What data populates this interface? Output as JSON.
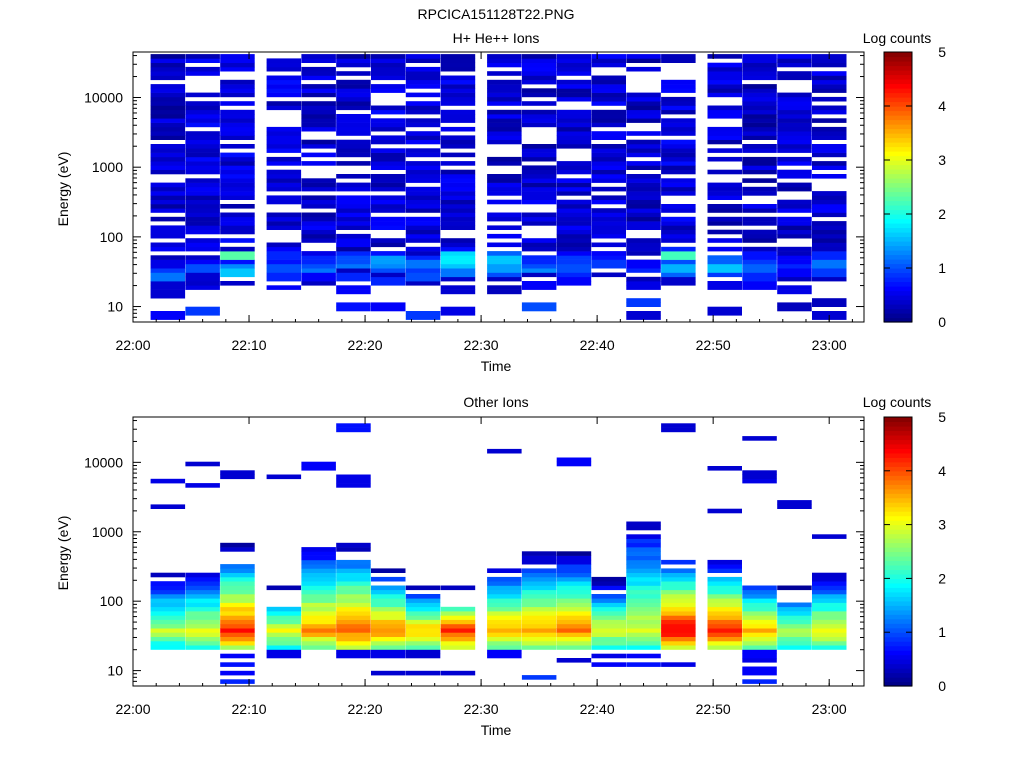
{
  "figure": {
    "title": "RPCICA151128T22.PNG"
  },
  "colormap": {
    "name": "jet",
    "stops": [
      "#000080",
      "#0000ff",
      "#00ffff",
      "#ffff00",
      "#ff0000",
      "#800000"
    ]
  },
  "chart_data": [
    {
      "type": "heatmap",
      "title": "H+ He++ Ions",
      "xlabel": "Time",
      "ylabel": "Energy (eV)",
      "colorbar_label": "Log counts",
      "colorbar_ticks": [
        "0",
        "1",
        "2",
        "3",
        "4",
        "5"
      ],
      "clim": [
        0,
        5
      ],
      "xlim": [
        "22:00",
        "23:03"
      ],
      "x_ticks": [
        "22:00",
        "22:10",
        "22:20",
        "22:30",
        "22:40",
        "22:50",
        "23:00"
      ],
      "y_scale": "log",
      "ylim": [
        6,
        45000
      ],
      "y_ticks": [
        "10",
        "100",
        "1000",
        "10000"
      ],
      "grid": false,
      "time_bins": [
        "22:03",
        "22:06",
        "22:09",
        "22:13",
        "22:16",
        "22:19",
        "22:22",
        "22:25",
        "22:28",
        "22:32",
        "22:35",
        "22:38",
        "22:41",
        "22:44",
        "22:47",
        "22:51",
        "22:54",
        "22:57",
        "23:00"
      ],
      "bin_minutes": 3.17,
      "columns": [
        {
          "low": [
            [
              7.5,
              0.6
            ],
            [
              16,
              0.4
            ],
            [
              20,
              0.4
            ],
            [
              28,
              1.2
            ],
            [
              33,
              0.9
            ],
            [
              40,
              0.5
            ]
          ],
          "bg": 0.35,
          "gap": 0.22
        },
        {
          "low": [
            [
              9,
              0.9
            ],
            [
              19,
              0.5
            ],
            [
              27,
              0.4
            ],
            [
              35,
              1.0
            ],
            [
              42,
              0.6
            ]
          ],
          "bg": 0.45,
          "gap": 0.24
        },
        {
          "low": [
            [
              30,
              1.6
            ],
            [
              36,
              1.3
            ],
            [
              42,
              0.7
            ],
            [
              52,
              1.4
            ],
            [
              57,
              2.3
            ]
          ],
          "bg": 0.45,
          "gap": 0.26
        },
        {
          "low": [
            [
              19,
              0.6
            ],
            [
              28,
              0.8
            ],
            [
              35,
              1.0
            ],
            [
              45,
              0.7
            ],
            [
              55,
              0.8
            ]
          ],
          "bg": 0.45,
          "gap": 0.3
        },
        {
          "low": [
            [
              26,
              0.6
            ],
            [
              33,
              1.2
            ],
            [
              38,
              1.0
            ],
            [
              48,
              0.8
            ],
            [
              57,
              0.5
            ]
          ],
          "bg": 0.4,
          "gap": 0.2
        },
        {
          "low": [
            [
              10,
              0.7
            ],
            [
              18,
              0.6
            ],
            [
              28,
              0.8
            ],
            [
              38,
              1.2
            ],
            [
              45,
              1.0
            ],
            [
              58,
              0.8
            ]
          ],
          "bg": 0.4,
          "gap": 0.22
        },
        {
          "low": [
            [
              10,
              0.6
            ],
            [
              22,
              0.8
            ],
            [
              33,
              1.0
            ],
            [
              40,
              1.3
            ],
            [
              47,
              1.4
            ],
            [
              55,
              0.7
            ]
          ],
          "bg": 0.42,
          "gap": 0.24
        },
        {
          "low": [
            [
              7.5,
              0.9
            ],
            [
              28,
              1.0
            ],
            [
              35,
              0.9
            ],
            [
              42,
              1.2
            ],
            [
              50,
              0.8
            ]
          ],
          "bg": 0.4,
          "gap": 0.25
        },
        {
          "low": [
            [
              9,
              0.5
            ],
            [
              18,
              0.4
            ],
            [
              32,
              1.2
            ],
            [
              38,
              1.6
            ],
            [
              48,
              1.8
            ],
            [
              55,
              1.7
            ]
          ],
          "bg": 0.45,
          "gap": 0.22
        },
        {
          "low": [
            [
              18,
              0.3
            ],
            [
              30,
              1.0
            ],
            [
              36,
              1.4
            ],
            [
              45,
              1.6
            ],
            [
              55,
              1.1
            ]
          ],
          "bg": 0.4,
          "gap": 0.24
        },
        {
          "low": [
            [
              10,
              1.0
            ],
            [
              20,
              0.6
            ],
            [
              33,
              1.3
            ],
            [
              38,
              1.0
            ],
            [
              48,
              0.8
            ]
          ],
          "bg": 0.4,
          "gap": 0.22
        },
        {
          "low": [
            [
              22,
              0.6
            ],
            [
              30,
              0.8
            ],
            [
              36,
              1.0
            ],
            [
              45,
              0.9
            ],
            [
              55,
              0.6
            ]
          ],
          "bg": 0.4,
          "gap": 0.26
        },
        {
          "low": [
            [
              40,
              0.9
            ],
            [
              48,
              0.7
            ],
            [
              58,
              0.6
            ]
          ],
          "bg": 0.42,
          "gap": 0.24
        },
        {
          "low": [
            [
              7.5,
              0.4
            ],
            [
              12,
              0.9
            ],
            [
              20,
              0.5
            ],
            [
              33,
              0.8
            ],
            [
              42,
              0.6
            ]
          ],
          "bg": 0.35,
          "gap": 0.25
        },
        {
          "low": [
            [
              30,
              1.1
            ],
            [
              36,
              1.5
            ],
            [
              42,
              1.0
            ],
            [
              55,
              2.2
            ],
            [
              60,
              0.8
            ]
          ],
          "bg": 0.45,
          "gap": 0.22
        },
        {
          "low": [
            [
              9,
              0.4
            ],
            [
              20,
              0.5
            ],
            [
              30,
              0.9
            ],
            [
              36,
              1.6
            ],
            [
              45,
              1.1
            ]
          ],
          "bg": 0.4,
          "gap": 0.24
        },
        {
          "low": [
            [
              20,
              0.6
            ],
            [
              28,
              0.8
            ],
            [
              35,
              1.1
            ],
            [
              42,
              0.9
            ],
            [
              55,
              0.7
            ]
          ],
          "bg": 0.35,
          "gap": 0.3
        },
        {
          "low": [
            [
              10,
              0.3
            ],
            [
              18,
              0.5
            ],
            [
              30,
              0.6
            ],
            [
              38,
              0.8
            ],
            [
              48,
              0.6
            ]
          ],
          "bg": 0.38,
          "gap": 0.28
        },
        {
          "low": [
            [
              7.5,
              0.4
            ],
            [
              12,
              0.3
            ],
            [
              30,
              0.9
            ],
            [
              42,
              1.2
            ],
            [
              55,
              0.8
            ]
          ],
          "bg": 0.4,
          "gap": 0.22
        }
      ]
    },
    {
      "type": "heatmap",
      "title": "Other Ions",
      "xlabel": "Time",
      "ylabel": "Energy (eV)",
      "colorbar_label": "Log counts",
      "colorbar_ticks": [
        "0",
        "1",
        "2",
        "3",
        "4",
        "5"
      ],
      "clim": [
        0,
        5
      ],
      "xlim": [
        "22:00",
        "23:03"
      ],
      "x_ticks": [
        "22:00",
        "22:10",
        "22:20",
        "22:30",
        "22:40",
        "22:50",
        "23:00"
      ],
      "y_scale": "log",
      "ylim": [
        6,
        45000
      ],
      "y_ticks": [
        "10",
        "100",
        "1000",
        "10000"
      ],
      "grid": false,
      "time_bins": [
        "22:03",
        "22:06",
        "22:09",
        "22:13",
        "22:16",
        "22:19",
        "22:22",
        "22:25",
        "22:28",
        "22:32",
        "22:35",
        "22:38",
        "22:41",
        "22:44",
        "22:47",
        "22:51",
        "22:54",
        "22:57",
        "23:00"
      ],
      "bin_minutes": 3.17,
      "columns": [
        {
          "top": 260,
          "peak": 2.8,
          "high": [
            [
              2300,
              0.4
            ],
            [
              5300,
              0.5
            ]
          ]
        },
        {
          "top": 300,
          "peak": 3.0,
          "high": [
            [
              4800,
              0.5
            ],
            [
              9800,
              0.4
            ]
          ]
        },
        {
          "top": 650,
          "peak": 4.2,
          "high": [
            [
              6800,
              0.4
            ]
          ],
          "low": [
            [
              7,
              0.8
            ],
            [
              9,
              0.6
            ],
            [
              12,
              0.7
            ],
            [
              16,
              0.6
            ]
          ]
        },
        {
          "top": 160,
          "peak": 3.0,
          "high": [
            [
              6200,
              0.4
            ]
          ],
          "low": [
            [
              17,
              0.5
            ]
          ]
        },
        {
          "top": 700,
          "peak": 3.7,
          "high": [
            [
              8900,
              0.6
            ]
          ]
        },
        {
          "top": 720,
          "peak": 4.0,
          "high": [
            [
              4600,
              0.5
            ],
            [
              5900,
              0.5
            ],
            [
              32500,
              0.7
            ]
          ],
          "low": [
            [
              17,
              0.5
            ]
          ]
        },
        {
          "top": 300,
          "peak": 3.8,
          "low": [
            [
              9,
              0.4
            ],
            [
              17,
              0.5
            ]
          ]
        },
        {
          "top": 180,
          "peak": 3.4,
          "low": [
            [
              9,
              0.4
            ],
            [
              17,
              0.4
            ]
          ]
        },
        {
          "top": 160,
          "peak": 4.2,
          "low": [
            [
              9,
              0.4
            ]
          ]
        },
        {
          "top": 320,
          "peak": 3.6,
          "high": [
            [
              14500,
              0.4
            ]
          ],
          "low": [
            [
              17,
              0.6
            ]
          ]
        },
        {
          "top": 500,
          "peak": 3.6,
          "low": [
            [
              8,
              0.9
            ]
          ]
        },
        {
          "top": 500,
          "peak": 3.8,
          "high": [
            [
              10500,
              0.6
            ]
          ],
          "low": [
            [
              14,
              0.4
            ]
          ]
        },
        {
          "top": 220,
          "peak": 3.0,
          "low": [
            [
              12,
              0.6
            ],
            [
              16,
              0.5
            ]
          ]
        },
        {
          "top": 1600,
          "peak": 3.0,
          "low": [
            [
              12,
              0.7
            ],
            [
              16,
              0.6
            ]
          ]
        },
        {
          "top": 520,
          "peak": 4.5,
          "high": [
            [
              31500,
              0.4
            ]
          ],
          "low": [
            [
              12,
              0.5
            ]
          ]
        },
        {
          "top": 420,
          "peak": 4.3,
          "high": [
            [
              2000,
              0.4
            ],
            [
              8100,
              0.4
            ]
          ]
        },
        {
          "top": 230,
          "peak": 3.5,
          "high": [
            [
              5500,
              0.5
            ],
            [
              6800,
              0.4
            ],
            [
              23000,
              0.4
            ]
          ],
          "low": [
            [
              7,
              0.8
            ],
            [
              10,
              0.6
            ],
            [
              14,
              0.5
            ],
            [
              17,
              0.6
            ]
          ]
        },
        {
          "top": 170,
          "peak": 2.8,
          "high": [
            [
              2400,
              0.4
            ]
          ]
        },
        {
          "top": 260,
          "peak": 3.2,
          "high": [
            [
              860,
              0.4
            ]
          ]
        }
      ]
    }
  ]
}
